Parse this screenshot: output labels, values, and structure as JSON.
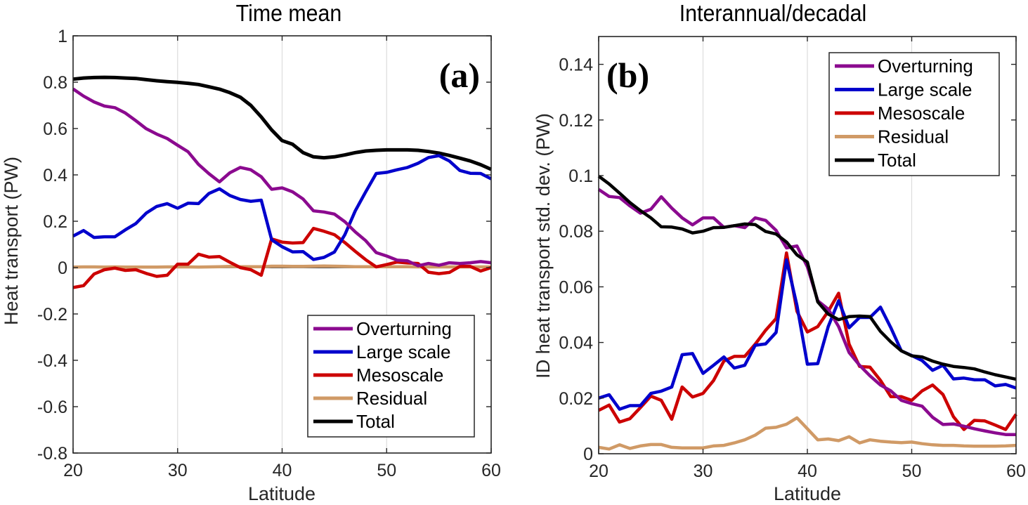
{
  "chart_data": [
    {
      "type": "line",
      "title": "Time mean",
      "panel_label": "(a)",
      "xlabel": "Latitude",
      "ylabel": "Heat transport (PW)",
      "xlim": [
        20,
        60
      ],
      "ylim": [
        -0.8,
        1
      ],
      "xticks": [
        20,
        30,
        40,
        50,
        60
      ],
      "xtick_labels": [
        "20",
        "30",
        "40",
        "50",
        "60"
      ],
      "yticks": [
        -0.8,
        -0.6,
        -0.4,
        -0.2,
        0,
        0.2,
        0.4,
        0.6,
        0.8,
        1
      ],
      "ytick_labels": [
        "-0.8",
        "-0.6",
        "-0.4",
        "-0.2",
        "0",
        "0.2",
        "0.4",
        "0.6",
        "0.8",
        "1"
      ],
      "grid": "vertical",
      "zero_line": true,
      "legend_position": "lower-right",
      "x": [
        20,
        21,
        22,
        23,
        24,
        25,
        26,
        27,
        28,
        29,
        30,
        31,
        32,
        33,
        34,
        35,
        36,
        37,
        38,
        39,
        40,
        41,
        42,
        43,
        44,
        45,
        46,
        47,
        48,
        49,
        50,
        51,
        52,
        53,
        54,
        55,
        56,
        57,
        58,
        59,
        60
      ],
      "series": [
        {
          "name": "Overturning",
          "color": "#8B0A8F",
          "values": [
            0.771,
            0.74,
            0.715,
            0.697,
            0.69,
            0.667,
            0.634,
            0.599,
            0.576,
            0.557,
            0.528,
            0.5,
            0.445,
            0.405,
            0.37,
            0.409,
            0.432,
            0.422,
            0.392,
            0.338,
            0.344,
            0.327,
            0.296,
            0.245,
            0.24,
            0.231,
            0.198,
            0.154,
            0.116,
            0.065,
            0.05,
            0.032,
            0.029,
            0.008,
            0.018,
            0.01,
            0.021,
            0.018,
            0.021,
            0.026,
            0.021
          ]
        },
        {
          "name": "Large scale",
          "color": "#0000CC",
          "values": [
            0.136,
            0.16,
            0.13,
            0.133,
            0.133,
            0.163,
            0.19,
            0.235,
            0.264,
            0.276,
            0.256,
            0.278,
            0.276,
            0.32,
            0.34,
            0.311,
            0.294,
            0.286,
            0.291,
            0.12,
            0.09,
            0.068,
            0.069,
            0.035,
            0.044,
            0.067,
            0.142,
            0.245,
            0.327,
            0.406,
            0.411,
            0.422,
            0.432,
            0.45,
            0.475,
            0.483,
            0.46,
            0.419,
            0.407,
            0.406,
            0.383
          ]
        },
        {
          "name": "Mesoscale",
          "color": "#CC0000",
          "values": [
            -0.086,
            -0.078,
            -0.028,
            -0.009,
            -0.002,
            -0.012,
            -0.009,
            -0.025,
            -0.038,
            -0.033,
            0.015,
            0.015,
            0.058,
            0.045,
            0.048,
            0.023,
            0.0,
            -0.009,
            -0.033,
            0.124,
            0.11,
            0.106,
            0.108,
            0.169,
            0.157,
            0.142,
            0.108,
            0.07,
            0.034,
            0.003,
            0.013,
            0.024,
            0.02,
            0.018,
            -0.02,
            -0.026,
            -0.021,
            0.005,
            0.005,
            -0.015,
            0.0
          ]
        },
        {
          "name": "Residual",
          "color": "#D09A66",
          "values": [
            0.002,
            0.003,
            0.003,
            0.002,
            0.003,
            0.002,
            0.002,
            0.002,
            0.002,
            0.003,
            0.003,
            0.003,
            0.002,
            0.003,
            0.004,
            0.005,
            0.004,
            0.004,
            0.004,
            0.006,
            0.006,
            0.005,
            0.005,
            0.006,
            0.007,
            0.006,
            0.005,
            0.004,
            0.004,
            0.004,
            0.004,
            0.004,
            0.004,
            0.003,
            0.003,
            0.003,
            0.003,
            0.003,
            0.003,
            0.003,
            0.003
          ]
        },
        {
          "name": "Total",
          "color": "#000000",
          "values": [
            0.813,
            0.818,
            0.82,
            0.821,
            0.82,
            0.818,
            0.816,
            0.811,
            0.806,
            0.802,
            0.799,
            0.795,
            0.79,
            0.78,
            0.77,
            0.755,
            0.735,
            0.7,
            0.65,
            0.594,
            0.548,
            0.532,
            0.496,
            0.478,
            0.474,
            0.478,
            0.486,
            0.496,
            0.503,
            0.506,
            0.508,
            0.508,
            0.508,
            0.506,
            0.501,
            0.494,
            0.484,
            0.472,
            0.46,
            0.444,
            0.424
          ]
        }
      ]
    },
    {
      "type": "line",
      "title": "Interannual/decadal",
      "panel_label": "(b)",
      "xlabel": "Latitude",
      "ylabel": "ID heat transport std. dev. (PW)",
      "xlim": [
        20,
        60
      ],
      "ylim": [
        0,
        0.15
      ],
      "xticks": [
        20,
        30,
        40,
        50,
        60
      ],
      "xtick_labels": [
        "20",
        "30",
        "40",
        "50",
        "60"
      ],
      "yticks": [
        0,
        0.02,
        0.04,
        0.06,
        0.08,
        0.1,
        0.12,
        0.14
      ],
      "ytick_labels": [
        "0",
        "0.02",
        "0.04",
        "0.06",
        "0.08",
        "0.1",
        "0.12",
        "0.14"
      ],
      "grid": "vertical",
      "zero_line": false,
      "legend_position": "top-right",
      "x": [
        20,
        21,
        22,
        23,
        24,
        25,
        26,
        27,
        28,
        29,
        30,
        31,
        32,
        33,
        34,
        35,
        36,
        37,
        38,
        39,
        40,
        41,
        42,
        43,
        44,
        45,
        46,
        47,
        48,
        49,
        50,
        51,
        52,
        53,
        54,
        55,
        56,
        57,
        58,
        59,
        60
      ],
      "series": [
        {
          "name": "Overturning",
          "color": "#8B0A8F",
          "values": [
            0.095,
            0.0925,
            0.0921,
            0.0891,
            0.0865,
            0.0879,
            0.0924,
            0.0883,
            0.0848,
            0.0823,
            0.0848,
            0.0848,
            0.0814,
            0.082,
            0.0813,
            0.0848,
            0.0839,
            0.0803,
            0.074,
            0.0747,
            0.0672,
            0.055,
            0.052,
            0.0457,
            0.0364,
            0.0318,
            0.028,
            0.0247,
            0.0226,
            0.0192,
            0.018,
            0.0171,
            0.0131,
            0.0105,
            0.0107,
            0.0099,
            0.009,
            0.0082,
            0.0075,
            0.0069,
            0.0069
          ]
        },
        {
          "name": "Large scale",
          "color": "#0000CC",
          "values": [
            0.02,
            0.0212,
            0.016,
            0.0173,
            0.0173,
            0.0217,
            0.0225,
            0.024,
            0.0356,
            0.036,
            0.0289,
            0.0318,
            0.0348,
            0.0308,
            0.0318,
            0.039,
            0.0395,
            0.0436,
            0.0697,
            0.0533,
            0.0322,
            0.0324,
            0.0457,
            0.055,
            0.0453,
            0.049,
            0.049,
            0.0527,
            0.0453,
            0.037,
            0.0353,
            0.0335,
            0.03,
            0.0318,
            0.0269,
            0.0272,
            0.0266,
            0.0266,
            0.0244,
            0.0249,
            0.0236
          ]
        },
        {
          "name": "Mesoscale",
          "color": "#CC0000",
          "values": [
            0.0156,
            0.0175,
            0.0114,
            0.0126,
            0.0166,
            0.0207,
            0.0192,
            0.0124,
            0.024,
            0.0204,
            0.0217,
            0.0263,
            0.0333,
            0.035,
            0.035,
            0.0394,
            0.0444,
            0.0486,
            0.0722,
            0.0512,
            0.0438,
            0.0457,
            0.0512,
            0.0577,
            0.0394,
            0.0314,
            0.0311,
            0.0264,
            0.0205,
            0.0205,
            0.0192,
            0.0226,
            0.0247,
            0.0213,
            0.0133,
            0.0087,
            0.012,
            0.0118,
            0.0103,
            0.0087,
            0.0142
          ]
        },
        {
          "name": "Residual",
          "color": "#D09A66",
          "values": [
            0.0023,
            0.0017,
            0.0032,
            0.0019,
            0.0028,
            0.0033,
            0.0033,
            0.0023,
            0.0021,
            0.0021,
            0.0021,
            0.0028,
            0.003,
            0.0039,
            0.005,
            0.0067,
            0.0092,
            0.0095,
            0.0106,
            0.0129,
            0.009,
            0.005,
            0.0053,
            0.0047,
            0.0061,
            0.0039,
            0.005,
            0.0045,
            0.0042,
            0.004,
            0.0042,
            0.0036,
            0.0032,
            0.003,
            0.003,
            0.0028,
            0.0027,
            0.0027,
            0.0027,
            0.0028,
            0.003
          ]
        },
        {
          "name": "Total",
          "color": "#000000",
          "values": [
            0.0998,
            0.097,
            0.0937,
            0.0903,
            0.0874,
            0.0848,
            0.0816,
            0.0815,
            0.0808,
            0.0794,
            0.08,
            0.0813,
            0.0814,
            0.082,
            0.0826,
            0.0824,
            0.0799,
            0.079,
            0.0761,
            0.0715,
            0.0689,
            0.0546,
            0.0502,
            0.0482,
            0.0493,
            0.0495,
            0.0493,
            0.044,
            0.0402,
            0.037,
            0.0352,
            0.0348,
            0.0333,
            0.0322,
            0.0314,
            0.031,
            0.0305,
            0.0294,
            0.0284,
            0.0276,
            0.0268
          ]
        }
      ]
    }
  ]
}
